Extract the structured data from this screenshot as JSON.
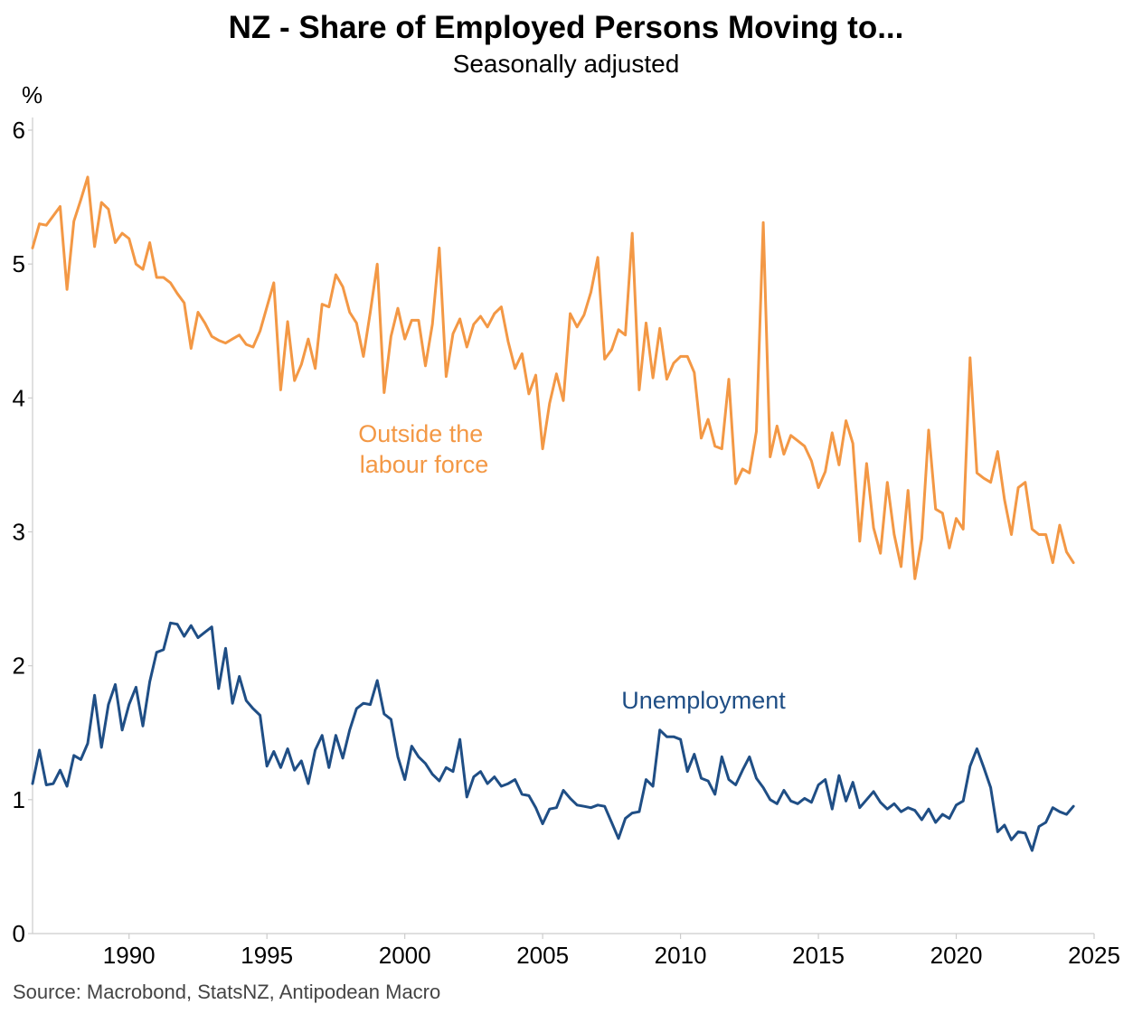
{
  "chart_data": {
    "type": "line",
    "title": "NZ - Share of Employed Persons Moving to...",
    "subtitle": "Seasonally adjusted",
    "ylabel": "%",
    "ylim": [
      0,
      6
    ],
    "yticks": [
      0,
      1,
      2,
      3,
      4,
      5,
      6
    ],
    "xlim": [
      1986.5,
      2025.0
    ],
    "xticks": [
      1990,
      1995,
      2000,
      2005,
      2010,
      2015,
      2020,
      2025
    ],
    "source": "Source: Macrobond, StatsNZ, Antipodean Macro",
    "x_start": 1986.5,
    "x_step": 0.25,
    "colors": {
      "olf": "#F39845",
      "unemp": "#1F4E85",
      "axis": "#cccccc"
    },
    "series": [
      {
        "name": "Outside the labour force",
        "label_lines": [
          "Outside the",
          "labour force"
        ],
        "color": "#F39845",
        "values": [
          5.12,
          5.3,
          5.29,
          5.36,
          5.43,
          4.81,
          5.32,
          5.48,
          5.65,
          5.13,
          5.46,
          5.41,
          5.16,
          5.23,
          5.19,
          5.0,
          4.96,
          5.16,
          4.9,
          4.9,
          4.86,
          4.78,
          4.71,
          4.37,
          4.64,
          4.56,
          4.46,
          4.43,
          4.41,
          4.44,
          4.47,
          4.4,
          4.38,
          4.5,
          4.68,
          4.86,
          4.06,
          4.57,
          4.13,
          4.25,
          4.44,
          4.22,
          4.7,
          4.68,
          4.92,
          4.83,
          4.64,
          4.56,
          4.31,
          4.64,
          5.0,
          4.04,
          4.46,
          4.67,
          4.44,
          4.58,
          4.58,
          4.24,
          4.55,
          5.12,
          4.16,
          4.48,
          4.59,
          4.38,
          4.55,
          4.61,
          4.53,
          4.63,
          4.68,
          4.42,
          4.22,
          4.33,
          4.03,
          4.17,
          3.62,
          3.96,
          4.18,
          3.98,
          4.63,
          4.53,
          4.62,
          4.79,
          5.05,
          4.29,
          4.36,
          4.51,
          4.47,
          5.23,
          4.06,
          4.56,
          4.15,
          4.52,
          4.14,
          4.26,
          4.31,
          4.31,
          4.19,
          3.7,
          3.84,
          3.64,
          3.62,
          4.14,
          3.36,
          3.47,
          3.44,
          3.75,
          5.31,
          3.56,
          3.79,
          3.58,
          3.72,
          3.68,
          3.64,
          3.53,
          3.33,
          3.45,
          3.74,
          3.5,
          3.83,
          3.66,
          2.93,
          3.51,
          3.03,
          2.84,
          3.37,
          2.98,
          2.74,
          3.31,
          2.65,
          2.95,
          3.76,
          3.17,
          3.14,
          2.88,
          3.1,
          3.02,
          4.3,
          3.44,
          3.4,
          3.37,
          3.6,
          3.24,
          2.98,
          3.33,
          3.37,
          3.02,
          2.98,
          2.98,
          2.77,
          3.05,
          2.85,
          2.77
        ]
      },
      {
        "name": "Unemployment",
        "label_lines": [
          "Unemployment"
        ],
        "color": "#1F4E85",
        "values": [
          1.12,
          1.37,
          1.11,
          1.12,
          1.22,
          1.1,
          1.33,
          1.3,
          1.42,
          1.78,
          1.39,
          1.71,
          1.86,
          1.52,
          1.71,
          1.84,
          1.55,
          1.88,
          2.1,
          2.12,
          2.32,
          2.31,
          2.22,
          2.3,
          2.21,
          2.25,
          2.29,
          1.83,
          2.13,
          1.72,
          1.92,
          1.74,
          1.68,
          1.63,
          1.25,
          1.36,
          1.24,
          1.38,
          1.22,
          1.29,
          1.12,
          1.37,
          1.48,
          1.24,
          1.48,
          1.31,
          1.52,
          1.68,
          1.72,
          1.71,
          1.89,
          1.64,
          1.6,
          1.32,
          1.15,
          1.4,
          1.32,
          1.27,
          1.19,
          1.14,
          1.24,
          1.21,
          1.45,
          1.02,
          1.17,
          1.21,
          1.12,
          1.17,
          1.1,
          1.12,
          1.15,
          1.04,
          1.03,
          0.94,
          0.82,
          0.93,
          0.94,
          1.07,
          1.01,
          0.96,
          0.95,
          0.94,
          0.96,
          0.95,
          0.83,
          0.71,
          0.86,
          0.9,
          0.91,
          1.15,
          1.1,
          1.52,
          1.47,
          1.47,
          1.45,
          1.21,
          1.34,
          1.16,
          1.14,
          1.04,
          1.32,
          1.15,
          1.11,
          1.22,
          1.32,
          1.16,
          1.09,
          1.0,
          0.97,
          1.07,
          0.99,
          0.97,
          1.01,
          0.98,
          1.11,
          1.15,
          0.93,
          1.18,
          0.99,
          1.13,
          0.94,
          1.0,
          1.06,
          0.98,
          0.93,
          0.97,
          0.91,
          0.94,
          0.92,
          0.85,
          0.93,
          0.83,
          0.89,
          0.86,
          0.96,
          0.99,
          1.25,
          1.38,
          1.24,
          1.09,
          0.76,
          0.81,
          0.7,
          0.76,
          0.75,
          0.62,
          0.8,
          0.83,
          0.94,
          0.91,
          0.89,
          0.95
        ]
      }
    ]
  }
}
